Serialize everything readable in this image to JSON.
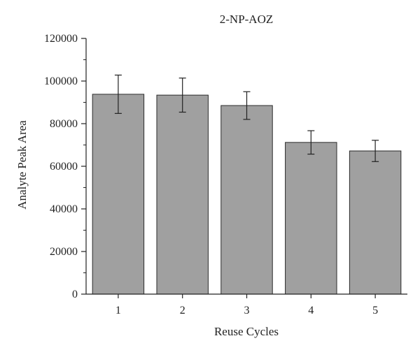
{
  "chart_data": {
    "type": "bar",
    "title": "2-NP-AOZ",
    "xlabel": "Reuse Cycles",
    "ylabel": "Analyte Peak Area",
    "categories": [
      "1",
      "2",
      "3",
      "4",
      "5"
    ],
    "values": [
      93800,
      93400,
      88500,
      71200,
      67200
    ],
    "error": [
      9000,
      8000,
      6500,
      5500,
      5000
    ],
    "ylim": [
      0,
      120000
    ],
    "yticks": [
      0,
      20000,
      40000,
      60000,
      80000,
      100000,
      120000
    ],
    "ytick_labels": [
      "0",
      "20000",
      "40000",
      "60000",
      "80000",
      "100000",
      "120000"
    ],
    "grid": false,
    "legend": "none",
    "bar_color": "#a0a0a0",
    "bar_edge_color": "#2b2b2b"
  }
}
